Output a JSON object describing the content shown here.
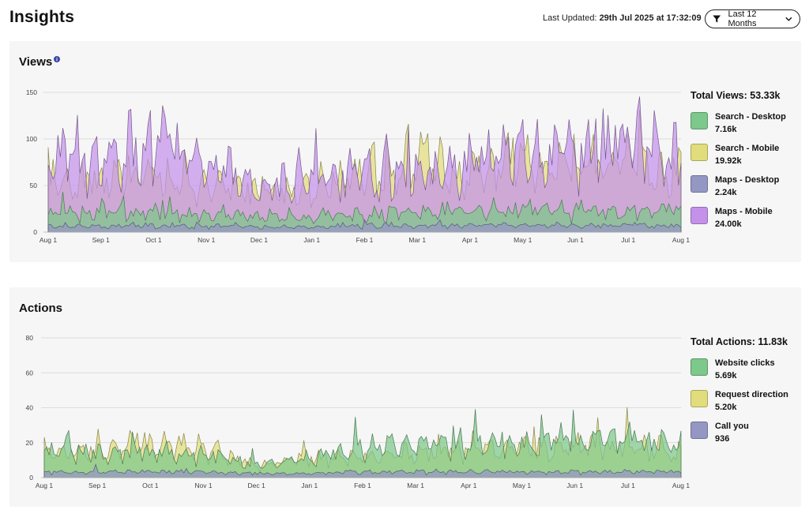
{
  "header": {
    "title": "Insights",
    "last_updated_label": "Last Updated:",
    "last_updated_value": "29th Jul 2025 at 17:32:09",
    "filter_label": "Last 12 Months"
  },
  "views": {
    "title": "Views",
    "total_label": "Total Views: 53.33k",
    "legend": [
      {
        "label": "Search - Desktop",
        "value": "7.16k",
        "color": "#7dc88b"
      },
      {
        "label": "Search - Mobile",
        "value": "19.92k",
        "color": "#e2dd7c"
      },
      {
        "label": "Maps - Desktop",
        "value": "2.24k",
        "color": "#9496c4"
      },
      {
        "label": "Maps - Mobile",
        "value": "24.00k",
        "color": "#c391ea"
      }
    ]
  },
  "actions": {
    "title": "Actions",
    "total_label": "Total Actions: 11.83k",
    "legend": [
      {
        "label": "Website clicks",
        "value": "5.69k",
        "color": "#7dc88b"
      },
      {
        "label": "Request direction",
        "value": "5.20k",
        "color": "#e2dd7c"
      },
      {
        "label": "Call you",
        "value": "936",
        "color": "#9496c4"
      }
    ]
  },
  "chart_data": [
    {
      "type": "area",
      "title": "Views",
      "x": [
        "Aug 1",
        "Sep 1",
        "Oct 1",
        "Nov 1",
        "Dec 1",
        "Jan 1",
        "Feb 1",
        "Mar 1",
        "Apr 1",
        "May 1",
        "Jun 1",
        "Jul 1",
        "Aug 1"
      ],
      "ylim": [
        0,
        150
      ],
      "yticks": [
        0,
        50,
        100,
        150
      ],
      "grid": true,
      "legend_position": "right",
      "series": [
        {
          "name": "Search - Desktop",
          "color": "#7dc88b",
          "values": [
            20,
            20,
            19,
            18,
            17,
            15,
            17,
            19,
            21,
            21,
            21,
            21,
            21
          ]
        },
        {
          "name": "Search - Mobile",
          "color": "#e2dd7c",
          "values": [
            55,
            50,
            58,
            48,
            40,
            42,
            60,
            68,
            62,
            70,
            60,
            72,
            60
          ]
        },
        {
          "name": "Maps - Desktop",
          "color": "#9496c4",
          "values": [
            6,
            6,
            6,
            6,
            5,
            5,
            6,
            6,
            7,
            7,
            6,
            7,
            6
          ]
        },
        {
          "name": "Maps - Mobile",
          "color": "#c391ea",
          "values": [
            80,
            70,
            92,
            62,
            45,
            55,
            55,
            55,
            65,
            80,
            80,
            90,
            75
          ]
        }
      ]
    },
    {
      "type": "area",
      "title": "Actions",
      "x": [
        "Aug 1",
        "Sep 1",
        "Oct 1",
        "Nov 1",
        "Dec 1",
        "Jan 1",
        "Feb 1",
        "Mar 1",
        "Apr 1",
        "May 1",
        "Jun 1",
        "Jul 1",
        "Aug 1"
      ],
      "ylim": [
        0,
        80
      ],
      "yticks": [
        0,
        20,
        40,
        60,
        80
      ],
      "grid": true,
      "legend_position": "right",
      "series": [
        {
          "name": "Website clicks",
          "color": "#7dc88b",
          "values": [
            14,
            13,
            14,
            12,
            7,
            10,
            15,
            18,
            17,
            17,
            20,
            21,
            16
          ]
        },
        {
          "name": "Request direction",
          "color": "#e2dd7c",
          "values": [
            13,
            14,
            18,
            16,
            6,
            10,
            11,
            13,
            14,
            15,
            16,
            18,
            12
          ]
        },
        {
          "name": "Call you",
          "color": "#9496c4",
          "values": [
            3,
            3,
            3,
            3,
            2,
            2,
            3,
            3,
            3,
            3,
            3,
            3,
            3
          ]
        }
      ]
    }
  ]
}
